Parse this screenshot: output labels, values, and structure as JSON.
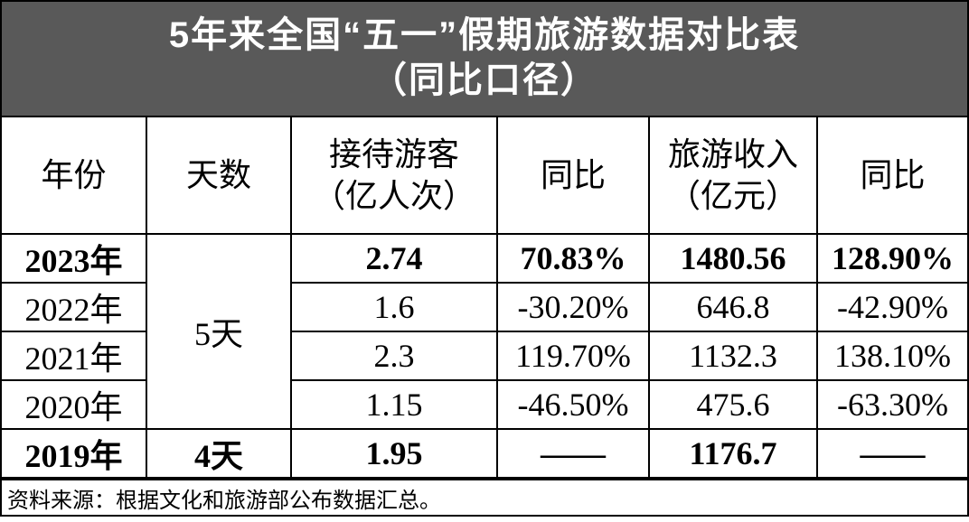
{
  "title": [
    "5年来全国“五一”假期旅游数据对比表",
    "（同比口径）"
  ],
  "table": {
    "headers": [
      [
        "年份"
      ],
      [
        "天数"
      ],
      [
        "接待游客",
        "（亿人次）"
      ],
      [
        "同比"
      ],
      [
        "旅游收入",
        "（亿元）"
      ],
      [
        "同比"
      ]
    ],
    "rows": [
      {
        "bold": true,
        "cells": [
          "2023年",
          "5天",
          "2.74",
          "70.83%",
          "1480.56",
          "128.90%"
        ]
      },
      {
        "bold": false,
        "cells": [
          "2022年",
          null,
          "1.6",
          "-30.20%",
          "646.8",
          "-42.90%"
        ]
      },
      {
        "bold": false,
        "cells": [
          "2021年",
          null,
          "2.3",
          "119.70%",
          "1132.3",
          "138.10%"
        ]
      },
      {
        "bold": false,
        "cells": [
          "2020年",
          null,
          "1.15",
          "-46.50%",
          "475.6",
          "-63.30%"
        ]
      },
      {
        "bold": true,
        "cells": [
          "2019年",
          "4天",
          "1.95",
          "——",
          "1176.7",
          "——"
        ]
      }
    ]
  },
  "footer": "资料来源：根据文化和旅游部公布数据汇总。"
}
